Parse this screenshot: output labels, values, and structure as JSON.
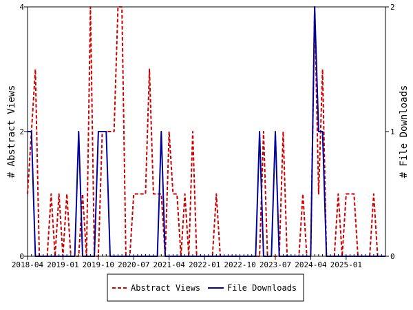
{
  "chart_data": {
    "type": "line",
    "title": "",
    "xlabel": "",
    "ylabel": "# Abstract Views",
    "y2label": "# File Downloads",
    "ylim": [
      0,
      4
    ],
    "y2lim": [
      0,
      2
    ],
    "yticks": [
      "0",
      "2",
      "4"
    ],
    "y2ticks": [
      "0",
      "1",
      "2"
    ],
    "grid": false,
    "legend": "bottom-center",
    "xtick_labels": [
      "2018-04",
      "2019-01",
      "2019-10",
      "2020-07",
      "2021-04",
      "2022-01",
      "2022-10",
      "2023-07",
      "2024-04",
      "2025-01"
    ],
    "x_start": "2018-04",
    "x_end": "2025-11",
    "series": [
      {
        "name": "Abstract Views",
        "color": "#cc0000",
        "style": "dashed",
        "axis": "left",
        "x": [
          "2018-04",
          "2018-05",
          "2018-06",
          "2018-07",
          "2018-08",
          "2018-09",
          "2018-10",
          "2018-11",
          "2018-12",
          "2019-01",
          "2019-02",
          "2019-03",
          "2019-04",
          "2019-05",
          "2019-06",
          "2019-07",
          "2019-08",
          "2019-09",
          "2019-10",
          "2019-11",
          "2019-12",
          "2020-01",
          "2020-02",
          "2020-03",
          "2020-04",
          "2020-05",
          "2020-06",
          "2020-07",
          "2020-08",
          "2020-09",
          "2020-10",
          "2020-11",
          "2020-12",
          "2021-01",
          "2021-02",
          "2021-03",
          "2021-04",
          "2021-05",
          "2021-06",
          "2021-07",
          "2021-08",
          "2021-09",
          "2021-10",
          "2021-11",
          "2021-12",
          "2022-01",
          "2022-02",
          "2022-03",
          "2022-04",
          "2022-05",
          "2022-06",
          "2022-07",
          "2022-08",
          "2022-09",
          "2022-10",
          "2022-11",
          "2022-12",
          "2023-01",
          "2023-02",
          "2023-03",
          "2023-04",
          "2023-05",
          "2023-06",
          "2023-07",
          "2023-08",
          "2023-09",
          "2023-10",
          "2023-11",
          "2023-12",
          "2024-01",
          "2024-02",
          "2024-03",
          "2024-04",
          "2024-05",
          "2024-06",
          "2024-07",
          "2024-08",
          "2024-09",
          "2024-10",
          "2024-11",
          "2024-12",
          "2025-01",
          "2025-02",
          "2025-03",
          "2025-04",
          "2025-05",
          "2025-06",
          "2025-07",
          "2025-08",
          "2025-09",
          "2025-10",
          "2025-11"
        ],
        "values": [
          1,
          2,
          3,
          0,
          0,
          0,
          1,
          0,
          1,
          0,
          1,
          0,
          0,
          0,
          1,
          0,
          4,
          0,
          0,
          2,
          2,
          2,
          2,
          4,
          4,
          0,
          0,
          1,
          1,
          1,
          1,
          3,
          1,
          1,
          1,
          0,
          2,
          1,
          1,
          0,
          1,
          0,
          2,
          0,
          0,
          0,
          0,
          0,
          1,
          0,
          0,
          0,
          0,
          0,
          0,
          0,
          0,
          0,
          0,
          0,
          2,
          0,
          0,
          0,
          0,
          2,
          0,
          0,
          0,
          0,
          1,
          0,
          0,
          4,
          1,
          3,
          0,
          0,
          0,
          1,
          0,
          1,
          1,
          1,
          0,
          0,
          0,
          0,
          1,
          0,
          0,
          0
        ]
      },
      {
        "name": "File Downloads",
        "color": "#000099",
        "style": "solid",
        "axis": "right",
        "x": [
          "2018-04",
          "2018-05",
          "2018-06",
          "2018-07",
          "2018-08",
          "2018-09",
          "2018-10",
          "2018-11",
          "2018-12",
          "2019-01",
          "2019-02",
          "2019-03",
          "2019-04",
          "2019-05",
          "2019-06",
          "2019-07",
          "2019-08",
          "2019-09",
          "2019-10",
          "2019-11",
          "2019-12",
          "2020-01",
          "2020-02",
          "2020-03",
          "2020-04",
          "2020-05",
          "2020-06",
          "2020-07",
          "2020-08",
          "2020-09",
          "2020-10",
          "2020-11",
          "2020-12",
          "2021-01",
          "2021-02",
          "2021-03",
          "2021-04",
          "2021-05",
          "2021-06",
          "2021-07",
          "2021-08",
          "2021-09",
          "2021-10",
          "2021-11",
          "2021-12",
          "2022-01",
          "2022-02",
          "2022-03",
          "2022-04",
          "2022-05",
          "2022-06",
          "2022-07",
          "2022-08",
          "2022-09",
          "2022-10",
          "2022-11",
          "2022-12",
          "2023-01",
          "2023-02",
          "2023-03",
          "2023-04",
          "2023-05",
          "2023-06",
          "2023-07",
          "2023-08",
          "2023-09",
          "2023-10",
          "2023-11",
          "2023-12",
          "2024-01",
          "2024-02",
          "2024-03",
          "2024-04",
          "2024-05",
          "2024-06",
          "2024-07",
          "2024-08",
          "2024-09",
          "2024-10",
          "2024-11",
          "2024-12",
          "2025-01",
          "2025-02",
          "2025-03",
          "2025-04",
          "2025-05",
          "2025-06",
          "2025-07",
          "2025-08",
          "2025-09",
          "2025-10",
          "2025-11"
        ],
        "values": [
          1,
          1,
          0,
          0,
          0,
          0,
          0,
          0,
          0,
          0,
          0,
          0,
          0,
          1,
          0,
          0,
          0,
          0,
          1,
          1,
          1,
          0,
          0,
          0,
          0,
          0,
          0,
          0,
          0,
          0,
          0,
          0,
          0,
          0,
          1,
          0,
          0,
          0,
          0,
          0,
          0,
          0,
          0,
          0,
          0,
          0,
          0,
          0,
          0,
          0,
          0,
          0,
          0,
          0,
          0,
          0,
          0,
          0,
          0,
          1,
          0,
          0,
          0,
          1,
          0,
          0,
          0,
          0,
          0,
          0,
          0,
          0,
          0,
          2,
          1,
          1,
          0,
          0,
          0,
          0,
          0,
          0,
          0,
          0,
          0,
          0,
          0,
          0,
          0,
          0,
          0,
          0
        ]
      }
    ]
  }
}
